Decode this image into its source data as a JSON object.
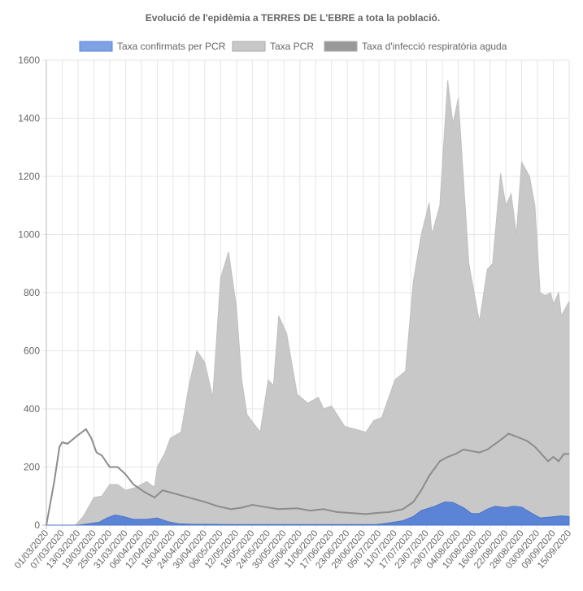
{
  "chart_data": {
    "type": "area",
    "title": "Evolució de l'epidèmia a TERRES DE L'EBRE a tota la població.",
    "xlabel": "",
    "ylabel": "",
    "ylim": [
      0,
      1600
    ],
    "yticks": [
      0,
      200,
      400,
      600,
      800,
      1000,
      1200,
      1400,
      1600
    ],
    "grid": true,
    "legend_position": "top",
    "x_unit": "days since 01/03/2020",
    "xlim": [
      0,
      198
    ],
    "xtick_step_days": 6,
    "xtick_labels": [
      "01/03/2020",
      "07/03/2020",
      "13/03/2020",
      "19/03/2020",
      "25/03/2020",
      "31/03/2020",
      "06/04/2020",
      "12/04/2020",
      "18/04/2020",
      "24/04/2020",
      "30/04/2020",
      "06/05/2020",
      "12/05/2020",
      "18/05/2020",
      "24/05/2020",
      "30/05/2020",
      "05/06/2020",
      "11/06/2020",
      "17/06/2020",
      "23/06/2020",
      "29/06/2020",
      "05/07/2020",
      "11/07/2020",
      "17/07/2020",
      "23/07/2020",
      "29/07/2020",
      "04/08/2020",
      "10/08/2020",
      "16/08/2020",
      "22/08/2020",
      "28/08/2020",
      "03/09/2020",
      "09/09/2020",
      "15/09/2020"
    ],
    "series": [
      {
        "name": "Taxa PCR",
        "color": "#c8c8c8",
        "kind": "area",
        "points": [
          [
            0,
            0
          ],
          [
            11,
            0
          ],
          [
            14,
            30
          ],
          [
            18,
            95
          ],
          [
            21,
            100
          ],
          [
            24,
            140
          ],
          [
            27,
            140
          ],
          [
            30,
            120
          ],
          [
            34,
            130
          ],
          [
            38,
            150
          ],
          [
            41,
            130
          ],
          [
            42,
            200
          ],
          [
            45,
            250
          ],
          [
            47,
            300
          ],
          [
            51,
            320
          ],
          [
            54,
            480
          ],
          [
            57,
            600
          ],
          [
            60,
            560
          ],
          [
            63,
            440
          ],
          [
            66,
            850
          ],
          [
            69,
            940
          ],
          [
            72,
            750
          ],
          [
            74,
            500
          ],
          [
            76,
            380
          ],
          [
            81,
            320
          ],
          [
            84,
            500
          ],
          [
            86,
            480
          ],
          [
            88,
            720
          ],
          [
            91,
            660
          ],
          [
            95,
            450
          ],
          [
            99,
            420
          ],
          [
            103,
            440
          ],
          [
            105,
            400
          ],
          [
            108,
            410
          ],
          [
            113,
            340
          ],
          [
            117,
            330
          ],
          [
            121,
            320
          ],
          [
            124,
            360
          ],
          [
            127,
            370
          ],
          [
            132,
            500
          ],
          [
            136,
            530
          ],
          [
            139,
            840
          ],
          [
            142,
            1000
          ],
          [
            145,
            1110
          ],
          [
            146,
            1000
          ],
          [
            149,
            1100
          ],
          [
            152,
            1530
          ],
          [
            154,
            1380
          ],
          [
            156,
            1470
          ],
          [
            160,
            900
          ],
          [
            164,
            700
          ],
          [
            167,
            880
          ],
          [
            169,
            900
          ],
          [
            172,
            1210
          ],
          [
            174,
            1100
          ],
          [
            176,
            1140
          ],
          [
            178,
            1000
          ],
          [
            180,
            1250
          ],
          [
            183,
            1200
          ],
          [
            185,
            1100
          ],
          [
            187,
            800
          ],
          [
            189,
            790
          ],
          [
            191,
            800
          ],
          [
            192,
            760
          ],
          [
            194,
            800
          ],
          [
            195,
            720
          ],
          [
            198,
            770
          ]
        ]
      },
      {
        "name": "Taxa confirmats per PCR",
        "color": "#5b84d6",
        "kind": "area",
        "points": [
          [
            0,
            0
          ],
          [
            12,
            0
          ],
          [
            16,
            5
          ],
          [
            20,
            10
          ],
          [
            23,
            25
          ],
          [
            26,
            35
          ],
          [
            29,
            30
          ],
          [
            33,
            20
          ],
          [
            38,
            20
          ],
          [
            42,
            25
          ],
          [
            46,
            12
          ],
          [
            50,
            5
          ],
          [
            55,
            3
          ],
          [
            70,
            2
          ],
          [
            100,
            2
          ],
          [
            125,
            2
          ],
          [
            130,
            8
          ],
          [
            135,
            15
          ],
          [
            139,
            30
          ],
          [
            142,
            50
          ],
          [
            147,
            65
          ],
          [
            151,
            80
          ],
          [
            154,
            78
          ],
          [
            158,
            60
          ],
          [
            161,
            40
          ],
          [
            164,
            40
          ],
          [
            167,
            55
          ],
          [
            170,
            65
          ],
          [
            174,
            60
          ],
          [
            177,
            65
          ],
          [
            180,
            62
          ],
          [
            184,
            40
          ],
          [
            187,
            25
          ],
          [
            191,
            28
          ],
          [
            195,
            32
          ],
          [
            198,
            30
          ]
        ]
      },
      {
        "name": "Taxa d'infecció respiratòria aguda",
        "color": "#8c8c8c",
        "kind": "line",
        "points": [
          [
            0,
            0
          ],
          [
            3,
            150
          ],
          [
            5,
            270
          ],
          [
            6,
            285
          ],
          [
            8,
            280
          ],
          [
            12,
            310
          ],
          [
            15,
            330
          ],
          [
            17,
            300
          ],
          [
            19,
            250
          ],
          [
            21,
            240
          ],
          [
            24,
            200
          ],
          [
            27,
            200
          ],
          [
            30,
            175
          ],
          [
            33,
            140
          ],
          [
            37,
            115
          ],
          [
            41,
            95
          ],
          [
            44,
            120
          ],
          [
            48,
            110
          ],
          [
            52,
            100
          ],
          [
            56,
            90
          ],
          [
            60,
            80
          ],
          [
            65,
            65
          ],
          [
            70,
            55
          ],
          [
            74,
            60
          ],
          [
            78,
            70
          ],
          [
            83,
            62
          ],
          [
            88,
            55
          ],
          [
            95,
            58
          ],
          [
            100,
            50
          ],
          [
            105,
            55
          ],
          [
            110,
            45
          ],
          [
            115,
            42
          ],
          [
            121,
            38
          ],
          [
            125,
            42
          ],
          [
            130,
            45
          ],
          [
            135,
            55
          ],
          [
            139,
            80
          ],
          [
            142,
            120
          ],
          [
            145,
            170
          ],
          [
            149,
            220
          ],
          [
            152,
            235
          ],
          [
            155,
            245
          ],
          [
            158,
            260
          ],
          [
            161,
            255
          ],
          [
            164,
            250
          ],
          [
            167,
            260
          ],
          [
            170,
            280
          ],
          [
            173,
            300
          ],
          [
            175,
            315
          ],
          [
            178,
            305
          ],
          [
            182,
            290
          ],
          [
            185,
            270
          ],
          [
            188,
            240
          ],
          [
            190,
            220
          ],
          [
            192,
            235
          ],
          [
            194,
            220
          ],
          [
            196,
            245
          ],
          [
            198,
            245
          ]
        ]
      }
    ]
  }
}
